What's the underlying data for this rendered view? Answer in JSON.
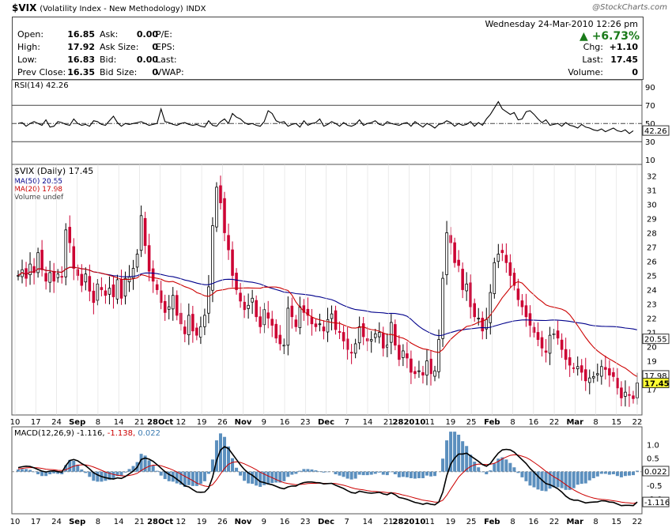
{
  "header": {
    "symbol": "$VIX",
    "name": "(Volatility Index - New Methodology)",
    "exchange": "INDX",
    "brand": "@StockCharts.com"
  },
  "quote": {
    "open_label": "Open:",
    "open": "16.85",
    "high_label": "High:",
    "high": "17.92",
    "low_label": "Low:",
    "low": "16.83",
    "prev_close_label": "Prev Close:",
    "prev_close": "16.35",
    "ask_label": "Ask:",
    "ask": "0.00",
    "ask_size_label": "Ask Size:",
    "ask_size": "0",
    "bid_label": "Bid:",
    "bid": "0.00",
    "bid_size_label": "Bid Size:",
    "bid_size": "0",
    "pe_label": "P/E:",
    "eps_label": "EPS:",
    "last_label_l": "Last:",
    "vwap_label": "VWAP:",
    "date": "Wednesday   24-Mar-2010  12:26 pm",
    "change_pct": "+6.73%",
    "chg_label": "Chg:",
    "chg": "+1.10",
    "last_label": "Last:",
    "last": "17.45",
    "volume_label": "Volume:",
    "volume": "0"
  },
  "colors": {
    "up": "#000000",
    "down": "#cc0033",
    "ma50": "#00008b",
    "ma20": "#cc0000",
    "macd_hist": "#5b8fbe",
    "rsi_line": "#000000",
    "highlight": "#ffff33"
  },
  "chart_data": [
    {
      "type": "line",
      "panel": "RSI",
      "legend": "RSI(14) 42.26",
      "y_ticks": [
        10,
        30,
        50,
        70,
        90
      ],
      "ylim": [
        5,
        98
      ],
      "reference_lines": [
        30,
        50,
        70
      ],
      "current_value": "42.26",
      "values": [
        50,
        51,
        47,
        50,
        52,
        50,
        48,
        54,
        46,
        47,
        52,
        51,
        49,
        48,
        55,
        50,
        48,
        49,
        47,
        53,
        52,
        49,
        48,
        53,
        58,
        51,
        47,
        50,
        49,
        50,
        51,
        52,
        50,
        48,
        49,
        50,
        66,
        52,
        51,
        49,
        48,
        50,
        51,
        49,
        48,
        49,
        47,
        46,
        53,
        48,
        47,
        52,
        55,
        50,
        61,
        57,
        55,
        51,
        49,
        50,
        48,
        47,
        52,
        64,
        61,
        53,
        51,
        52,
        47,
        49,
        50,
        46,
        53,
        48,
        50,
        51,
        55,
        47,
        49,
        52,
        50,
        47,
        51,
        48,
        47,
        49,
        54,
        48,
        50,
        51,
        53,
        49,
        48,
        52,
        50,
        49,
        48,
        50,
        51,
        47,
        52,
        49,
        46,
        50,
        48,
        45,
        49,
        50,
        53,
        51,
        47,
        50,
        48,
        49,
        52,
        47,
        51,
        48,
        55,
        60,
        67,
        74,
        66,
        63,
        60,
        62,
        54,
        55,
        63,
        64,
        60,
        55,
        51,
        54,
        48,
        49,
        50,
        47,
        51,
        48,
        47,
        45,
        49,
        46,
        45,
        43,
        42,
        44,
        41,
        43,
        45,
        42,
        41,
        43,
        39,
        42
      ]
    },
    {
      "type": "candlestick",
      "panel": "Price",
      "legend_title": "$VIX (Daily) 17.45",
      "legend": [
        {
          "name": "MA(50) 20.55",
          "color": "#00008b"
        },
        {
          "name": "MA(20) 17.98",
          "color": "#cc0000"
        },
        {
          "name": "Volume undef",
          "color": "#444444"
        }
      ],
      "ylim": [
        15.2,
        32.8
      ],
      "y_ticks": [
        17,
        18,
        19,
        20,
        21,
        22,
        23,
        24,
        25,
        26,
        27,
        28,
        29,
        30,
        31,
        32
      ],
      "badges": [
        "20.55",
        "17.98",
        "17.45"
      ],
      "x_tick_labels": [
        "10",
        "17",
        "24",
        "Sep",
        "8",
        "14",
        "21",
        "28Oct",
        "12",
        "19",
        "26",
        "Nov",
        "9",
        "16",
        "23",
        "Dec",
        "7",
        "14",
        "21",
        "282010",
        "11",
        "19",
        "25",
        "Feb",
        "8",
        "16",
        "22",
        "Mar",
        "8",
        "15",
        "22"
      ],
      "ma50_current": 20.55,
      "ma20_current": 17.98,
      "last_close": 17.45,
      "close": [
        25.0,
        25.4,
        24.8,
        25.8,
        25.2,
        26.6,
        25.4,
        24.6,
        25.2,
        24.6,
        25.1,
        24.9,
        28.2,
        27.3,
        25.5,
        25.0,
        24.3,
        25.1,
        23.9,
        23.1,
        24.4,
        24.0,
        23.6,
        24.1,
        23.5,
        24.7,
        23.4,
        24.8,
        24.9,
        25.5,
        26.5,
        29.2,
        27.1,
        25.3,
        24.6,
        24.0,
        23.1,
        22.4,
        22.8,
        23.6,
        22.2,
        21.6,
        20.9,
        22.2,
        21.1,
        20.8,
        21.4,
        22.2,
        24.2,
        28.5,
        31.2,
        30.1,
        28.0,
        26.8,
        25.0,
        24.0,
        23.2,
        22.6,
        22.9,
        23.4,
        22.1,
        21.4,
        22.6,
        22.0,
        21.5,
        20.6,
        20.2,
        20.1,
        22.7,
        22.1,
        21.4,
        22.8,
        22.4,
        22.2,
        21.6,
        21.4,
        21.6,
        21.1,
        21.9,
        22.3,
        21.2,
        21.0,
        20.4,
        19.8,
        19.6,
        20.2,
        21.4,
        20.7,
        20.4,
        20.5,
        20.9,
        21.0,
        19.9,
        20.1,
        21.7,
        20.1,
        19.1,
        19.7,
        19.2,
        18.2,
        18.1,
        18.3,
        18.0,
        19.0,
        18.1,
        18.3,
        20.5,
        24.8,
        28.0,
        27.3,
        25.9,
        25.7,
        24.0,
        24.4,
        22.8,
        22.1,
        22.0,
        21.1,
        21.9,
        23.8,
        25.9,
        26.5,
        26.6,
        25.9,
        25.0,
        24.3,
        23.3,
        22.8,
        22.1,
        21.5,
        21.0,
        20.5,
        19.9,
        19.6,
        20.8,
        20.9,
        20.6,
        19.8,
        19.1,
        18.7,
        18.5,
        18.6,
        18.2,
        17.6,
        17.8,
        17.9,
        18.1,
        18.6,
        18.4,
        18.0,
        17.9,
        17.1,
        16.4,
        16.8,
        16.6,
        16.35,
        17.45
      ]
    },
    {
      "type": "line",
      "panel": "MACD",
      "legend": "MACD(12,26,9) -1.116, -1.138, 0.022",
      "legend_parts": [
        "MACD(12,26,9)",
        "-1.116,",
        "-1.138,",
        "0.022"
      ],
      "ylim": [
        -1.55,
        1.65
      ],
      "y_ticks": [
        1.0,
        0.5,
        -0.5,
        -1.0
      ],
      "y_tick_labels": [
        "1.0",
        "0.5",
        "-0.5",
        "-1.0"
      ],
      "badges": [
        "0.022",
        "-1.116"
      ],
      "series": [
        {
          "name": "MACD(12,26,9)",
          "color": "#000000",
          "values": [
            0.15,
            0.18,
            0.2,
            0.19,
            0.14,
            0.08,
            0.02,
            -0.01,
            0.02,
            0.03,
            0.0,
            -0.02,
            0.22,
            0.41,
            0.45,
            0.4,
            0.3,
            0.22,
            0.1,
            -0.04,
            -0.12,
            -0.18,
            -0.22,
            -0.25,
            -0.27,
            -0.23,
            -0.25,
            -0.18,
            -0.08,
            0.02,
            0.16,
            0.45,
            0.5,
            0.46,
            0.38,
            0.26,
            0.13,
            0.0,
            -0.1,
            -0.17,
            -0.28,
            -0.39,
            -0.52,
            -0.56,
            -0.66,
            -0.75,
            -0.76,
            -0.75,
            -0.6,
            -0.2,
            0.42,
            0.8,
            0.92,
            0.85,
            0.65,
            0.45,
            0.25,
            0.08,
            -0.05,
            -0.13,
            -0.25,
            -0.37,
            -0.4,
            -0.45,
            -0.48,
            -0.54,
            -0.6,
            -0.63,
            -0.56,
            -0.53,
            -0.53,
            -0.45,
            -0.4,
            -0.38,
            -0.38,
            -0.4,
            -0.41,
            -0.45,
            -0.44,
            -0.43,
            -0.5,
            -0.56,
            -0.62,
            -0.7,
            -0.77,
            -0.79,
            -0.72,
            -0.75,
            -0.78,
            -0.79,
            -0.78,
            -0.76,
            -0.82,
            -0.85,
            -0.78,
            -0.85,
            -0.95,
            -0.98,
            -1.02,
            -1.08,
            -1.13,
            -1.16,
            -1.2,
            -1.16,
            -1.2,
            -1.22,
            -1.12,
            -0.75,
            -0.15,
            0.28,
            0.5,
            0.65,
            0.65,
            0.68,
            0.58,
            0.48,
            0.38,
            0.26,
            0.2,
            0.3,
            0.5,
            0.68,
            0.8,
            0.82,
            0.8,
            0.72,
            0.58,
            0.44,
            0.3,
            0.12,
            -0.02,
            -0.17,
            -0.31,
            -0.44,
            -0.48,
            -0.55,
            -0.63,
            -0.75,
            -0.9,
            -1.0,
            -1.05,
            -1.05,
            -1.1,
            -1.15,
            -1.13,
            -1.12,
            -1.11,
            -1.07,
            -1.08,
            -1.12,
            -1.13,
            -1.19,
            -1.25,
            -1.24,
            -1.24,
            -1.25,
            -1.116
          ]
        },
        {
          "name": "signal",
          "color": "#cc0000",
          "values": [
            0.1,
            0.12,
            0.14,
            0.15,
            0.15,
            0.14,
            0.12,
            0.09,
            0.08,
            0.07,
            0.05,
            0.04,
            0.07,
            0.14,
            0.2,
            0.24,
            0.25,
            0.25,
            0.22,
            0.17,
            0.11,
            0.05,
            -0.01,
            -0.06,
            -0.1,
            -0.13,
            -0.15,
            -0.16,
            -0.14,
            -0.11,
            -0.06,
            0.04,
            0.13,
            0.2,
            0.24,
            0.24,
            0.22,
            0.17,
            0.12,
            0.06,
            -0.01,
            -0.09,
            -0.17,
            -0.25,
            -0.33,
            -0.42,
            -0.48,
            -0.53,
            -0.55,
            -0.48,
            -0.3,
            -0.08,
            0.12,
            0.27,
            0.34,
            0.36,
            0.34,
            0.29,
            0.22,
            0.15,
            0.07,
            -0.02,
            -0.09,
            -0.16,
            -0.22,
            -0.29,
            -0.35,
            -0.41,
            -0.44,
            -0.46,
            -0.48,
            -0.47,
            -0.46,
            -0.44,
            -0.43,
            -0.43,
            -0.42,
            -0.43,
            -0.43,
            -0.43,
            -0.44,
            -0.47,
            -0.5,
            -0.54,
            -0.59,
            -0.63,
            -0.65,
            -0.67,
            -0.7,
            -0.72,
            -0.73,
            -0.74,
            -0.75,
            -0.77,
            -0.77,
            -0.79,
            -0.82,
            -0.86,
            -0.89,
            -0.93,
            -0.97,
            -1.01,
            -1.05,
            -1.07,
            -1.09,
            -1.12,
            -1.12,
            -1.05,
            -0.87,
            -0.64,
            -0.42,
            -0.2,
            -0.05,
            0.09,
            0.19,
            0.25,
            0.28,
            0.27,
            0.26,
            0.27,
            0.31,
            0.38,
            0.47,
            0.54,
            0.6,
            0.62,
            0.61,
            0.57,
            0.52,
            0.44,
            0.34,
            0.24,
            0.13,
            0.01,
            -0.09,
            -0.19,
            -0.27,
            -0.37,
            -0.48,
            -0.58,
            -0.67,
            -0.75,
            -0.82,
            -0.88,
            -0.93,
            -0.97,
            -1.0,
            -1.02,
            -1.03,
            -1.05,
            -1.07,
            -1.09,
            -1.12,
            -1.14,
            -1.15,
            -1.17,
            -1.138
          ]
        },
        {
          "name": "histogram",
          "color": "#5b8fbe",
          "values": []
        }
      ]
    }
  ]
}
